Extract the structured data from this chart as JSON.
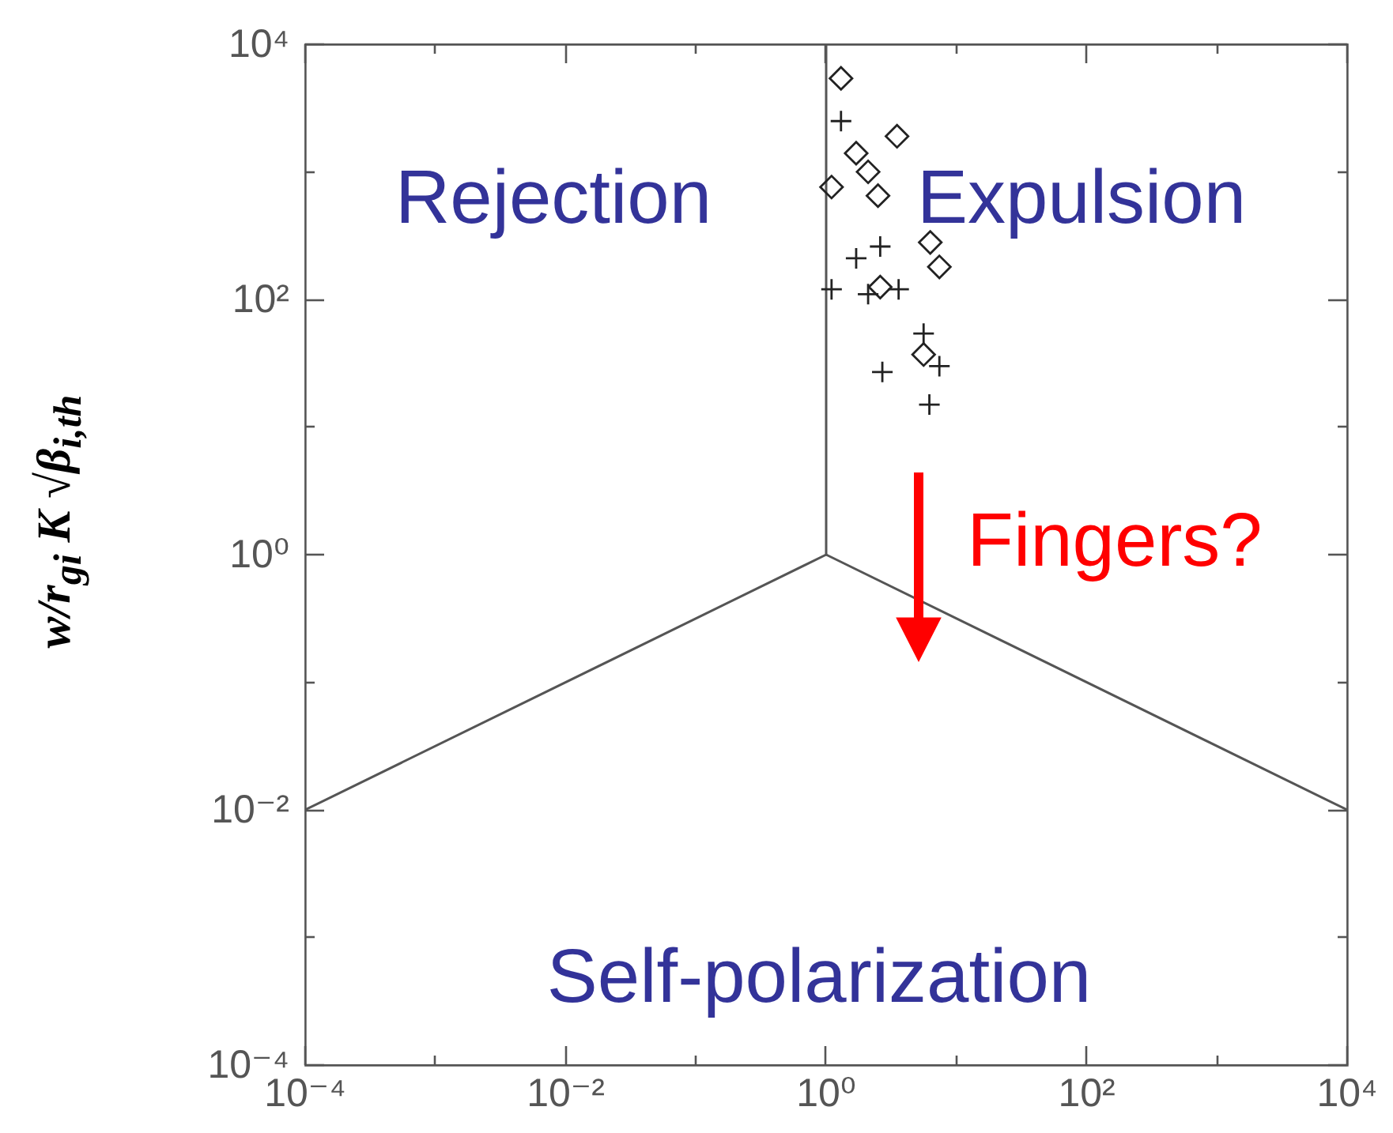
{
  "chart_data": {
    "type": "scatter",
    "ylabel": "w/r$_{gi}$ K √β$_{i,th}$",
    "log": "xy",
    "xlim": [
      0.0001,
      10000
    ],
    "ylim": [
      0.0001,
      10000
    ],
    "xticks": [
      {
        "value": 0.0001,
        "label": "10⁻⁴"
      },
      {
        "value": 0.001,
        "label": null
      },
      {
        "value": 0.01,
        "label": "10⁻²"
      },
      {
        "value": 0.1,
        "label": null
      },
      {
        "value": 1,
        "label": "10⁰"
      },
      {
        "value": 10,
        "label": null
      },
      {
        "value": 100,
        "label": "10²"
      },
      {
        "value": 1000,
        "label": null
      },
      {
        "value": 10000,
        "label": "10⁴"
      }
    ],
    "yticks": [
      {
        "value": 0.0001,
        "label": "10⁻⁴"
      },
      {
        "value": 0.001,
        "label": null
      },
      {
        "value": 0.01,
        "label": "10⁻²"
      },
      {
        "value": 0.1,
        "label": null
      },
      {
        "value": 1,
        "label": "10⁰"
      },
      {
        "value": 10,
        "label": null
      },
      {
        "value": 100,
        "label": "10²"
      },
      {
        "value": 1000,
        "label": null
      },
      {
        "value": 10000,
        "label": "10⁴"
      }
    ],
    "series": [
      {
        "type": "line",
        "color": "#555555",
        "x": [
          0.0001,
          1,
          10000
        ],
        "values": [
          0.01,
          1,
          0.01
        ]
      },
      {
        "type": "line",
        "color": "#555555",
        "x": [
          1,
          1
        ],
        "values": [
          10000,
          1
        ]
      },
      {
        "type": "scatter",
        "marker": "diamond",
        "color": "#222222",
        "x": [
          1.3,
          3.5,
          1.7,
          2.1,
          1.1,
          2.5,
          6.3,
          7.4,
          2.6,
          5.6
        ],
        "values": [
          5400,
          1900,
          1400,
          1000,
          760,
          650,
          280,
          180,
          125,
          37
        ]
      },
      {
        "type": "scatter",
        "marker": "cross",
        "color": "#222222",
        "x": [
          1.3,
          2.6,
          1.7,
          1.1,
          2.1,
          3.6,
          5.6,
          7.4,
          2.7,
          6.2
        ],
        "values": [
          2500,
          260,
          210,
          120,
          110,
          120,
          54,
          30,
          27,
          15
        ]
      }
    ],
    "annotations": [
      "Rejection",
      "Expulsion",
      "Self-polarization",
      "Fingers?"
    ]
  }
}
